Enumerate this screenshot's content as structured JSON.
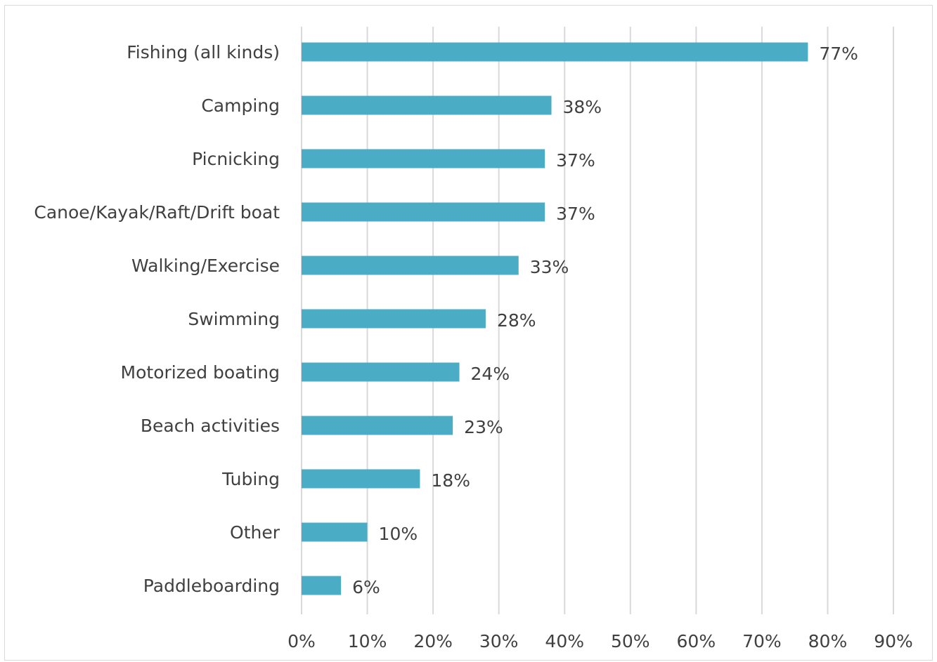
{
  "chart_data": {
    "type": "bar",
    "orientation": "horizontal",
    "categories": [
      "Fishing (all kinds)",
      "Camping",
      "Picnicking",
      "Canoe/Kayak/Raft/Drift boat",
      "Walking/Exercise",
      "Swimming",
      "Motorized boating",
      "Beach activities",
      "Tubing",
      "Other",
      "Paddleboarding"
    ],
    "values": [
      77,
      38,
      37,
      37,
      33,
      28,
      24,
      23,
      18,
      10,
      6
    ],
    "value_labels": [
      "77%",
      "38%",
      "37%",
      "37%",
      "33%",
      "28%",
      "24%",
      "23%",
      "18%",
      "10%",
      "6%"
    ],
    "xlim": [
      0,
      90
    ],
    "x_ticks": [
      0,
      10,
      20,
      30,
      40,
      50,
      60,
      70,
      80,
      90
    ],
    "x_tick_labels": [
      "0%",
      "10%",
      "20%",
      "30%",
      "40%",
      "50%",
      "60%",
      "70%",
      "80%",
      "90%"
    ],
    "grid": "vertical",
    "legend": "none",
    "colors": {
      "bar": "#4bacc6",
      "grid": "#d9d9d9",
      "text": "#404040"
    }
  }
}
